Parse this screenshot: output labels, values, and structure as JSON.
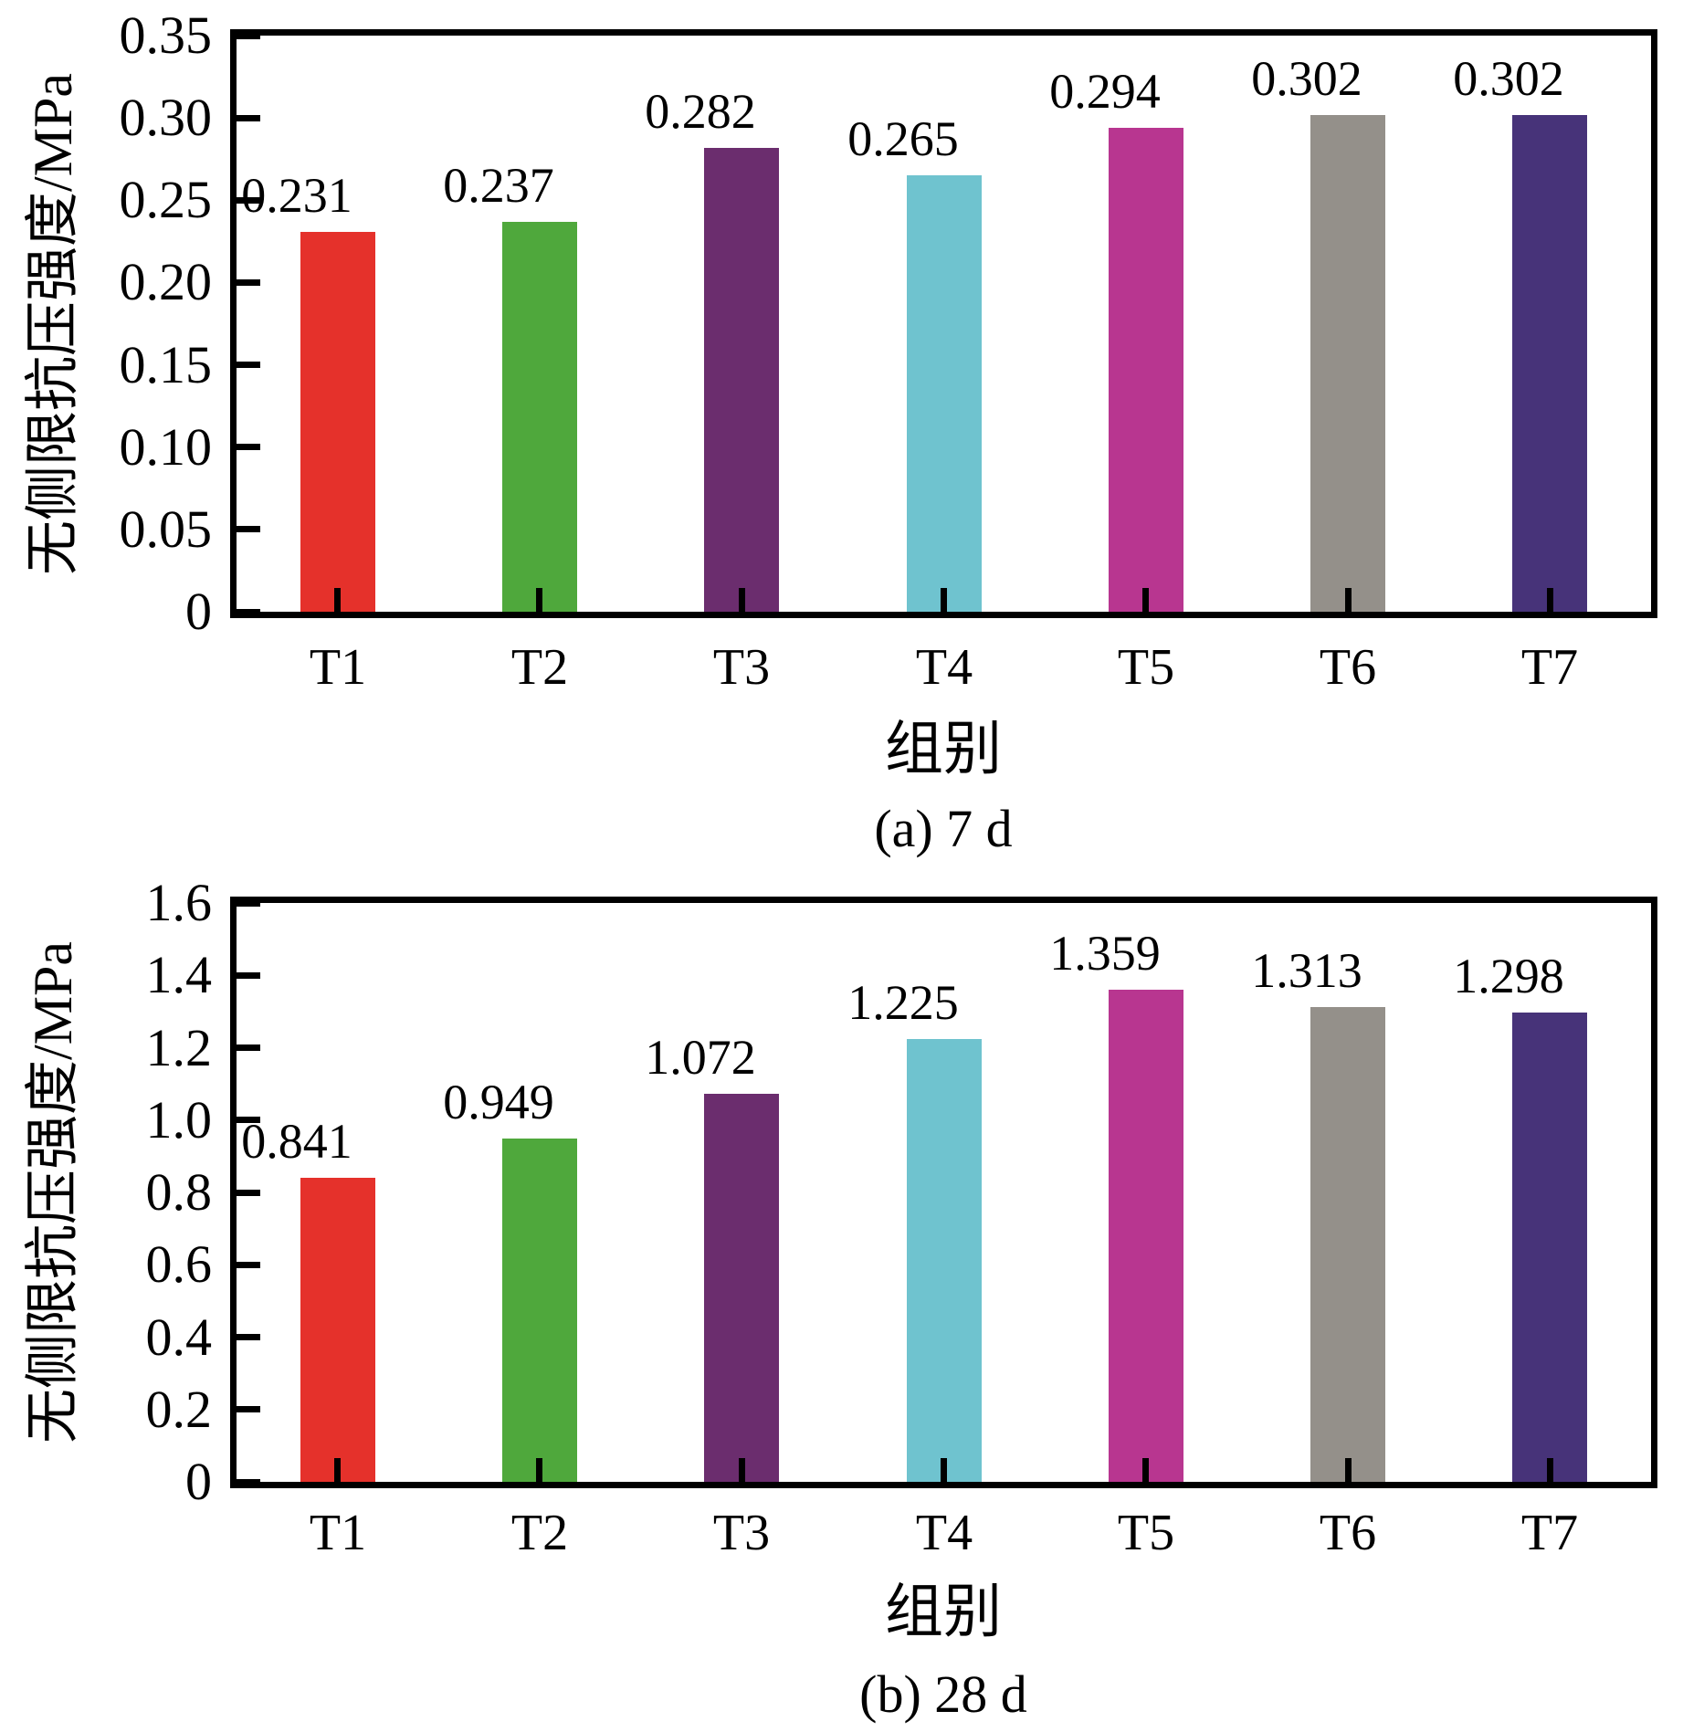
{
  "figure": {
    "background": "#ffffff",
    "text_color": "#000000",
    "axis_color": "#000000"
  },
  "chart_data": [
    {
      "type": "bar",
      "panel": "a",
      "caption": "(a) 7 d",
      "xlabel": "组别",
      "ylabel": "无侧限抗压强度/MPa",
      "categories": [
        "T1",
        "T2",
        "T3",
        "T4",
        "T5",
        "T6",
        "T7"
      ],
      "values": [
        0.231,
        0.237,
        0.282,
        0.265,
        0.294,
        0.302,
        0.302
      ],
      "value_labels": [
        "0.231",
        "0.237",
        "0.282",
        "0.265",
        "0.294",
        "0.302",
        "0.302"
      ],
      "bar_colors": [
        "#e5312b",
        "#4fa83c",
        "#6b2d6e",
        "#6fc3cf",
        "#b83690",
        "#94908a",
        "#473379"
      ],
      "ylim": [
        0,
        0.35
      ],
      "ytick_values": [
        0,
        0.05,
        0.1,
        0.15,
        0.2,
        0.25,
        0.3,
        0.35
      ],
      "ytick_labels": [
        "0",
        "0.05",
        "0.10",
        "0.15",
        "0.20",
        "0.25",
        "0.30",
        "0.35"
      ],
      "grid": false,
      "legend": null
    },
    {
      "type": "bar",
      "panel": "b",
      "caption": "(b) 28 d",
      "xlabel": "组别",
      "ylabel": "无侧限抗压强度/MPa",
      "categories": [
        "T1",
        "T2",
        "T3",
        "T4",
        "T5",
        "T6",
        "T7"
      ],
      "values": [
        0.841,
        0.949,
        1.072,
        1.225,
        1.359,
        1.313,
        1.298
      ],
      "value_labels": [
        "0.841",
        "0.949",
        "1.072",
        "1.225",
        "1.359",
        "1.313",
        "1.298"
      ],
      "bar_colors": [
        "#e5312b",
        "#4fa83c",
        "#6b2d6e",
        "#6fc3cf",
        "#b83690",
        "#94908a",
        "#473379"
      ],
      "ylim": [
        0,
        1.6
      ],
      "ytick_values": [
        0,
        0.2,
        0.4,
        0.6,
        0.8,
        1.0,
        1.2,
        1.4,
        1.6
      ],
      "ytick_labels": [
        "0",
        "0.2",
        "0.4",
        "0.6",
        "0.8",
        "1.0",
        "1.2",
        "1.4",
        "1.6"
      ],
      "grid": false,
      "legend": null
    }
  ]
}
